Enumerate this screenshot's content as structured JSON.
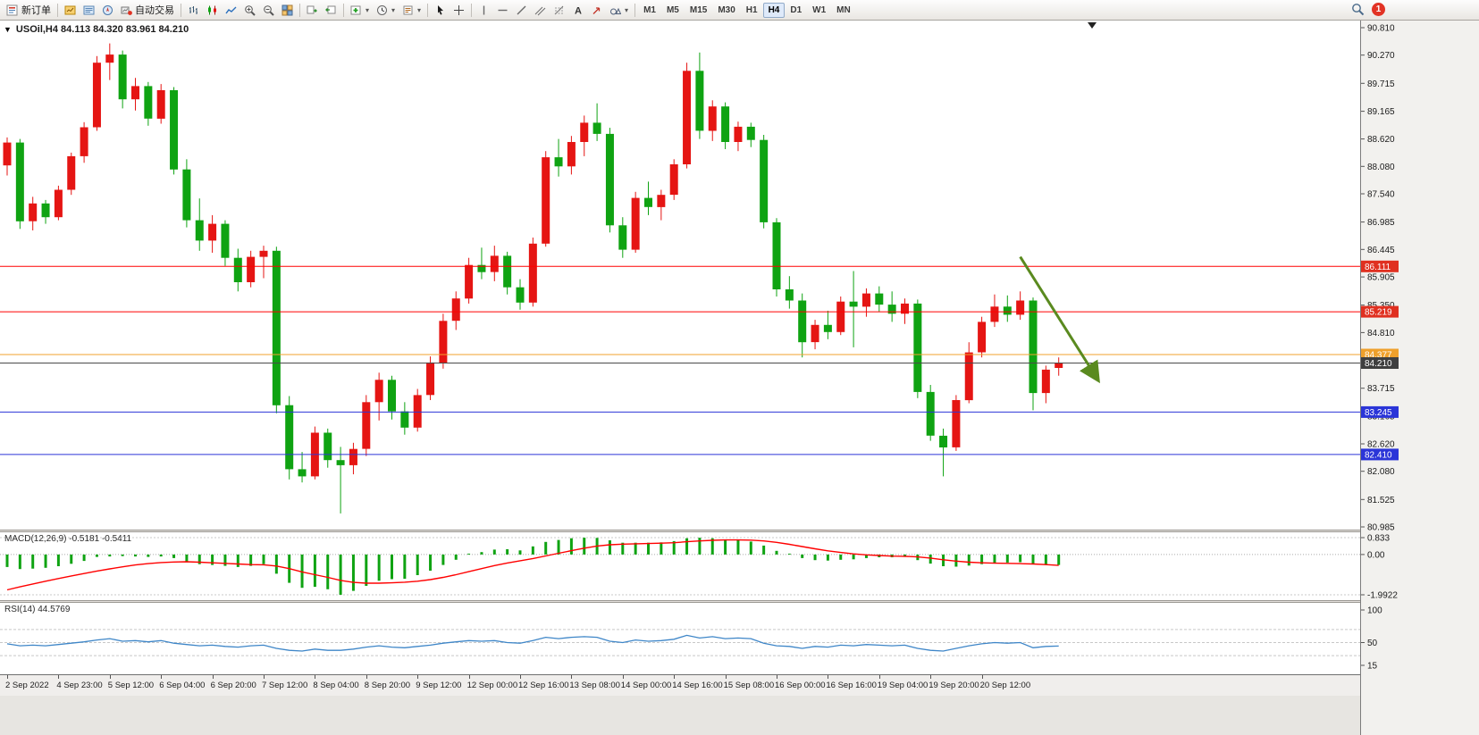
{
  "toolbar": {
    "new_order_label": "新订单",
    "auto_trading_label": "自动交易",
    "timeframes": [
      "M1",
      "M5",
      "M15",
      "M30",
      "H1",
      "H4",
      "D1",
      "W1",
      "MN"
    ],
    "active_timeframe": "H4",
    "notification_count": "1",
    "icons": [
      "new-order",
      "market-watch",
      "data-window",
      "navigator",
      "auto-trading",
      "bar-chart",
      "candlestick-chart",
      "line-chart",
      "zoom-in",
      "zoom-out",
      "tile-windows",
      "auto-scroll",
      "chart-shift",
      "indicators",
      "periods",
      "templates",
      "cursor",
      "crosshair",
      "vertical-line",
      "horizontal-line",
      "trendline",
      "equidistant-channel",
      "fibonacci",
      "text",
      "arrow-objects",
      "shapes",
      "search",
      "notifications"
    ]
  },
  "chart": {
    "header": "USOil,H4 84.113 84.320 83.961 84.210",
    "one_click_glyph": "▼"
  },
  "macd": {
    "label": "MACD(12,26,9) -0.5181 -0.5411",
    "scale_labels": [
      "0.833",
      "0.00",
      "-1.9922"
    ]
  },
  "rsi": {
    "label": "RSI(14) 44.5769",
    "scale_labels": [
      "100",
      "50",
      "15"
    ],
    "levels": [
      70,
      50,
      30
    ]
  },
  "chart_data": {
    "type": "candlestick",
    "symbol": "USOil",
    "period": "H4",
    "ohlc_current": {
      "open": 84.113,
      "high": 84.32,
      "low": 83.961,
      "close": 84.21
    },
    "colors": {
      "up": "#e51513",
      "down": "#0fa312",
      "macd_histogram": "#0fa312",
      "macd_signal": "#ff0000",
      "rsi_line": "#3e86c8",
      "last_price": "#4a4a4a"
    },
    "price_scale_ticks": [
      "90.810",
      "90.270",
      "89.715",
      "89.165",
      "88.620",
      "88.080",
      "87.540",
      "86.985",
      "86.445",
      "85.905",
      "85.350",
      "84.810",
      "84.270",
      "83.715",
      "83.165",
      "82.620",
      "82.080",
      "81.525",
      "80.985"
    ],
    "price_lines": [
      {
        "price": 86.111,
        "label": "86.111",
        "box": "#e03020",
        "line": "#ff0000",
        "kind": "resistance"
      },
      {
        "price": 85.219,
        "label": "85.219",
        "box": "#e03020",
        "line": "#ff0000",
        "kind": "resistance"
      },
      {
        "price": 84.377,
        "label": "84.377",
        "box": "#efa02b",
        "line": "#f2a12e",
        "kind": "level"
      },
      {
        "price": 83.245,
        "label": "83.245",
        "box": "#2b35d8",
        "line": "#2b35d8",
        "kind": "support"
      },
      {
        "price": 82.41,
        "label": "82.410",
        "box": "#2b35d8",
        "line": "#2b35d8",
        "kind": "support"
      },
      {
        "price": 84.21,
        "label": "84.210",
        "box": "#3f3f3f",
        "line": "#4a4a4a",
        "kind": "last-price"
      }
    ],
    "time_labels": [
      "2 Sep 2022",
      "4 Sep 23:00",
      "5 Sep 12:00",
      "6 Sep 04:00",
      "6 Sep 20:00",
      "7 Sep 12:00",
      "8 Sep 04:00",
      "8 Sep 20:00",
      "9 Sep 12:00",
      "12 Sep 00:00",
      "12 Sep 16:00",
      "13 Sep 08:00",
      "14 Sep 00:00",
      "14 Sep 16:00",
      "15 Sep 08:00",
      "16 Sep 00:00",
      "16 Sep 16:00",
      "19 Sep 04:00",
      "19 Sep 20:00",
      "20 Sep 12:00"
    ],
    "candles": [
      [
        88.1,
        88.65,
        87.9,
        88.55
      ],
      [
        88.55,
        88.62,
        86.85,
        87.0
      ],
      [
        87.0,
        87.48,
        86.82,
        87.35
      ],
      [
        87.35,
        87.42,
        86.95,
        87.08
      ],
      [
        87.08,
        87.7,
        87.02,
        87.62
      ],
      [
        87.62,
        88.35,
        87.52,
        88.28
      ],
      [
        88.28,
        88.95,
        88.15,
        88.85
      ],
      [
        88.85,
        90.25,
        88.78,
        90.12
      ],
      [
        90.12,
        90.5,
        89.78,
        90.28
      ],
      [
        90.28,
        90.36,
        89.22,
        89.4
      ],
      [
        89.4,
        89.82,
        89.18,
        89.66
      ],
      [
        89.66,
        89.74,
        88.88,
        89.02
      ],
      [
        89.02,
        89.7,
        88.92,
        89.58
      ],
      [
        89.58,
        89.64,
        87.92,
        88.02
      ],
      [
        88.02,
        88.22,
        86.88,
        87.02
      ],
      [
        87.02,
        87.45,
        86.42,
        86.62
      ],
      [
        86.62,
        87.12,
        86.38,
        86.95
      ],
      [
        86.95,
        87.02,
        86.12,
        86.28
      ],
      [
        86.28,
        86.46,
        85.62,
        85.8
      ],
      [
        85.8,
        86.42,
        85.7,
        86.3
      ],
      [
        86.3,
        86.52,
        85.88,
        86.42
      ],
      [
        86.42,
        86.5,
        83.22,
        83.38
      ],
      [
        83.38,
        83.56,
        81.92,
        82.12
      ],
      [
        82.12,
        82.46,
        81.86,
        81.98
      ],
      [
        81.98,
        82.96,
        81.92,
        82.84
      ],
      [
        82.84,
        82.92,
        82.15,
        82.3
      ],
      [
        82.3,
        82.56,
        81.25,
        82.2
      ],
      [
        82.2,
        82.64,
        82.02,
        82.52
      ],
      [
        82.52,
        83.58,
        82.38,
        83.44
      ],
      [
        83.44,
        84.02,
        83.08,
        83.88
      ],
      [
        83.88,
        83.96,
        83.1,
        83.26
      ],
      [
        83.26,
        83.44,
        82.8,
        82.94
      ],
      [
        82.94,
        83.7,
        82.86,
        83.58
      ],
      [
        83.58,
        84.34,
        83.48,
        84.22
      ],
      [
        84.22,
        85.18,
        84.1,
        85.04
      ],
      [
        85.04,
        85.62,
        84.86,
        85.48
      ],
      [
        85.48,
        86.28,
        85.38,
        86.14
      ],
      [
        86.14,
        86.48,
        85.86,
        86.0
      ],
      [
        86.0,
        86.52,
        85.82,
        86.32
      ],
      [
        86.32,
        86.4,
        85.56,
        85.7
      ],
      [
        85.7,
        85.86,
        85.26,
        85.4
      ],
      [
        85.4,
        86.68,
        85.32,
        86.56
      ],
      [
        86.56,
        88.38,
        86.5,
        88.26
      ],
      [
        88.26,
        88.62,
        87.88,
        88.08
      ],
      [
        88.08,
        88.68,
        87.92,
        88.56
      ],
      [
        88.56,
        89.08,
        88.28,
        88.94
      ],
      [
        88.94,
        89.32,
        88.58,
        88.72
      ],
      [
        88.72,
        88.84,
        86.78,
        86.92
      ],
      [
        86.92,
        87.08,
        86.28,
        86.44
      ],
      [
        86.44,
        87.58,
        86.38,
        87.46
      ],
      [
        87.46,
        87.78,
        87.12,
        87.28
      ],
      [
        87.28,
        87.62,
        87.02,
        87.52
      ],
      [
        87.52,
        88.22,
        87.42,
        88.12
      ],
      [
        88.12,
        90.12,
        88.04,
        89.96
      ],
      [
        89.96,
        90.32,
        88.62,
        88.78
      ],
      [
        88.78,
        89.38,
        88.58,
        89.26
      ],
      [
        89.26,
        89.34,
        88.42,
        88.56
      ],
      [
        88.56,
        88.96,
        88.38,
        88.86
      ],
      [
        88.86,
        88.94,
        88.46,
        88.6
      ],
      [
        88.6,
        88.7,
        86.86,
        86.98
      ],
      [
        86.98,
        87.06,
        85.52,
        85.66
      ],
      [
        85.66,
        85.92,
        85.28,
        85.44
      ],
      [
        85.44,
        85.58,
        84.32,
        84.62
      ],
      [
        84.62,
        85.06,
        84.48,
        84.96
      ],
      [
        84.96,
        85.24,
        84.68,
        84.82
      ],
      [
        84.82,
        85.52,
        84.76,
        85.42
      ],
      [
        85.42,
        86.02,
        84.52,
        85.32
      ],
      [
        85.32,
        85.68,
        85.12,
        85.58
      ],
      [
        85.58,
        85.72,
        85.22,
        85.36
      ],
      [
        85.36,
        85.62,
        85.02,
        85.18
      ],
      [
        85.18,
        85.48,
        84.98,
        85.38
      ],
      [
        85.38,
        85.46,
        83.52,
        83.64
      ],
      [
        83.64,
        83.78,
        82.68,
        82.78
      ],
      [
        82.78,
        82.92,
        81.98,
        82.55
      ],
      [
        82.55,
        83.58,
        82.48,
        83.48
      ],
      [
        83.48,
        84.62,
        83.42,
        84.42
      ],
      [
        84.42,
        85.12,
        84.32,
        85.02
      ],
      [
        85.02,
        85.56,
        84.92,
        85.32
      ],
      [
        85.32,
        85.54,
        85.02,
        85.16
      ],
      [
        85.16,
        85.62,
        85.06,
        85.44
      ],
      [
        85.44,
        85.5,
        83.28,
        83.62
      ],
      [
        83.62,
        84.16,
        83.42,
        84.08
      ],
      [
        84.113,
        84.32,
        83.961,
        84.21
      ]
    ],
    "macd_main": [
      -0.62,
      -0.72,
      -0.7,
      -0.66,
      -0.58,
      -0.46,
      -0.32,
      -0.12,
      -0.1,
      -0.08,
      -0.1,
      -0.12,
      -0.1,
      -0.18,
      -0.34,
      -0.48,
      -0.52,
      -0.56,
      -0.62,
      -0.56,
      -0.48,
      -0.95,
      -1.4,
      -1.65,
      -1.6,
      -1.72,
      -1.99,
      -1.8,
      -1.55,
      -1.3,
      -1.22,
      -1.2,
      -1.02,
      -0.8,
      -0.52,
      -0.26,
      -0.02,
      0.12,
      0.24,
      0.26,
      0.2,
      0.4,
      0.62,
      0.72,
      0.8,
      0.83,
      0.82,
      0.7,
      0.58,
      0.58,
      0.58,
      0.6,
      0.66,
      0.8,
      0.83,
      0.8,
      0.74,
      0.7,
      0.64,
      0.44,
      0.18,
      -0.02,
      -0.18,
      -0.28,
      -0.3,
      -0.26,
      -0.24,
      -0.18,
      -0.14,
      -0.14,
      -0.12,
      -0.28,
      -0.45,
      -0.58,
      -0.6,
      -0.55,
      -0.48,
      -0.42,
      -0.4,
      -0.38,
      -0.48,
      -0.52,
      -0.5181
    ],
    "macd_signal": [
      -1.75,
      -1.6,
      -1.46,
      -1.32,
      -1.19,
      -1.06,
      -0.94,
      -0.82,
      -0.71,
      -0.61,
      -0.52,
      -0.45,
      -0.4,
      -0.37,
      -0.36,
      -0.38,
      -0.41,
      -0.44,
      -0.47,
      -0.5,
      -0.51,
      -0.57,
      -0.7,
      -0.86,
      -1.0,
      -1.13,
      -1.28,
      -1.38,
      -1.42,
      -1.42,
      -1.4,
      -1.37,
      -1.32,
      -1.24,
      -1.13,
      -1.0,
      -0.85,
      -0.7,
      -0.55,
      -0.42,
      -0.31,
      -0.2,
      -0.07,
      0.06,
      0.19,
      0.31,
      0.42,
      0.48,
      0.51,
      0.53,
      0.54,
      0.56,
      0.58,
      0.63,
      0.67,
      0.7,
      0.72,
      0.72,
      0.71,
      0.67,
      0.6,
      0.5,
      0.39,
      0.28,
      0.18,
      0.1,
      0.03,
      -0.02,
      -0.05,
      -0.08,
      -0.09,
      -0.12,
      -0.18,
      -0.26,
      -0.33,
      -0.38,
      -0.41,
      -0.43,
      -0.44,
      -0.45,
      -0.47,
      -0.5,
      -0.5411
    ],
    "rsi_values": [
      48,
      45,
      46,
      45,
      47,
      49,
      51,
      54,
      56,
      52,
      53,
      51,
      53,
      49,
      47,
      45,
      46,
      44,
      43,
      45,
      46,
      41,
      38,
      37,
      40,
      38,
      38,
      40,
      43,
      45,
      43,
      42,
      44,
      46,
      49,
      51,
      53,
      52,
      53,
      50,
      49,
      53,
      58,
      56,
      58,
      59,
      58,
      52,
      50,
      54,
      52,
      53,
      55,
      61,
      57,
      59,
      56,
      57,
      56,
      49,
      45,
      44,
      41,
      44,
      43,
      46,
      45,
      47,
      46,
      45,
      46,
      41,
      38,
      37,
      41,
      45,
      48,
      50,
      49,
      50,
      42,
      44,
      44.58
    ],
    "trend_arrow": {
      "from_index": 79,
      "from_price": 86.3,
      "to_index": 85,
      "to_price": 83.9,
      "color": "#5a8a1f"
    },
    "bar_marker_index": 84.6
  }
}
